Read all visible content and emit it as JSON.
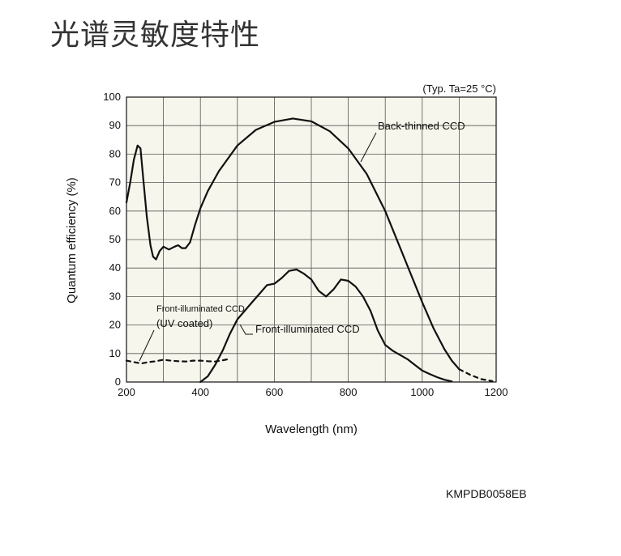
{
  "page": {
    "title": "光谱灵敏度特性",
    "figure_code": "KMPDB0058EB"
  },
  "chart_data": {
    "type": "line",
    "title": "",
    "condition_note": "(Typ. Ta=25 °C)",
    "xlabel": "Wavelength (nm)",
    "ylabel": "Quantum efficiency (%)",
    "xlim": [
      200,
      1200
    ],
    "ylim": [
      0,
      100
    ],
    "xticks": [
      200,
      400,
      600,
      800,
      1000,
      1200
    ],
    "yticks": [
      0,
      10,
      20,
      30,
      40,
      50,
      60,
      70,
      80,
      90,
      100
    ],
    "grid": true,
    "series": [
      {
        "name": "Back-thinned CCD",
        "style": "solid",
        "color": "#111111",
        "points": [
          [
            200,
            63
          ],
          [
            210,
            70
          ],
          [
            220,
            78
          ],
          [
            230,
            83
          ],
          [
            238,
            82
          ],
          [
            245,
            72
          ],
          [
            255,
            58
          ],
          [
            265,
            48
          ],
          [
            272,
            44
          ],
          [
            280,
            43
          ],
          [
            290,
            46
          ],
          [
            300,
            47.5
          ],
          [
            315,
            46.5
          ],
          [
            330,
            47.5
          ],
          [
            340,
            48
          ],
          [
            350,
            47
          ],
          [
            360,
            47
          ],
          [
            372,
            49
          ],
          [
            385,
            55
          ],
          [
            400,
            61
          ],
          [
            420,
            67
          ],
          [
            450,
            74
          ],
          [
            500,
            83
          ],
          [
            550,
            88.5
          ],
          [
            600,
            91.3
          ],
          [
            650,
            92.5
          ],
          [
            700,
            91.5
          ],
          [
            750,
            88
          ],
          [
            800,
            82
          ],
          [
            850,
            73
          ],
          [
            900,
            60
          ],
          [
            950,
            44
          ],
          [
            1000,
            28
          ],
          [
            1030,
            19
          ],
          [
            1060,
            11.5
          ],
          [
            1080,
            7.5
          ],
          [
            1100,
            4.5
          ]
        ]
      },
      {
        "name": "Back-thinned CCD (extrapolated)",
        "style": "dashed",
        "color": "#111111",
        "points": [
          [
            1100,
            4.5
          ],
          [
            1130,
            2.5
          ],
          [
            1160,
            1
          ],
          [
            1190,
            0.3
          ]
        ]
      },
      {
        "name": "Front-illuminated CCD",
        "style": "solid",
        "color": "#111111",
        "points": [
          [
            400,
            0
          ],
          [
            420,
            2
          ],
          [
            440,
            6
          ],
          [
            460,
            11
          ],
          [
            480,
            17
          ],
          [
            500,
            22
          ],
          [
            520,
            25
          ],
          [
            540,
            28
          ],
          [
            560,
            31
          ],
          [
            580,
            34
          ],
          [
            600,
            34.5
          ],
          [
            620,
            36.5
          ],
          [
            640,
            39
          ],
          [
            660,
            39.5
          ],
          [
            680,
            38
          ],
          [
            700,
            36
          ],
          [
            720,
            32
          ],
          [
            740,
            30
          ],
          [
            760,
            32.5
          ],
          [
            780,
            36
          ],
          [
            800,
            35.5
          ],
          [
            820,
            33.5
          ],
          [
            840,
            30
          ],
          [
            860,
            25
          ],
          [
            880,
            18
          ],
          [
            900,
            13
          ],
          [
            920,
            11
          ],
          [
            940,
            9.5
          ],
          [
            960,
            8
          ],
          [
            980,
            6
          ],
          [
            1000,
            4
          ],
          [
            1020,
            2.8
          ],
          [
            1040,
            1.7
          ],
          [
            1060,
            0.8
          ],
          [
            1080,
            0.2
          ]
        ]
      },
      {
        "name": "Front-illuminated CCD (UV coated)",
        "style": "dashed",
        "color": "#111111",
        "points": [
          [
            200,
            7.5
          ],
          [
            220,
            7
          ],
          [
            240,
            6.5
          ],
          [
            260,
            7
          ],
          [
            280,
            7.3
          ],
          [
            300,
            7.8
          ],
          [
            320,
            7.5
          ],
          [
            340,
            7.3
          ],
          [
            360,
            7.2
          ],
          [
            380,
            7.5
          ],
          [
            400,
            7.5
          ],
          [
            420,
            7.3
          ],
          [
            440,
            7.2
          ],
          [
            460,
            7.6
          ],
          [
            475,
            8
          ]
        ]
      }
    ],
    "annotations": [
      {
        "text": "Back-thinned CCD"
      },
      {
        "text": "Front-illuminated CCD"
      },
      {
        "text_line1": "Front-illuminated CCD",
        "text_line2": "(UV coated)"
      }
    ]
  }
}
